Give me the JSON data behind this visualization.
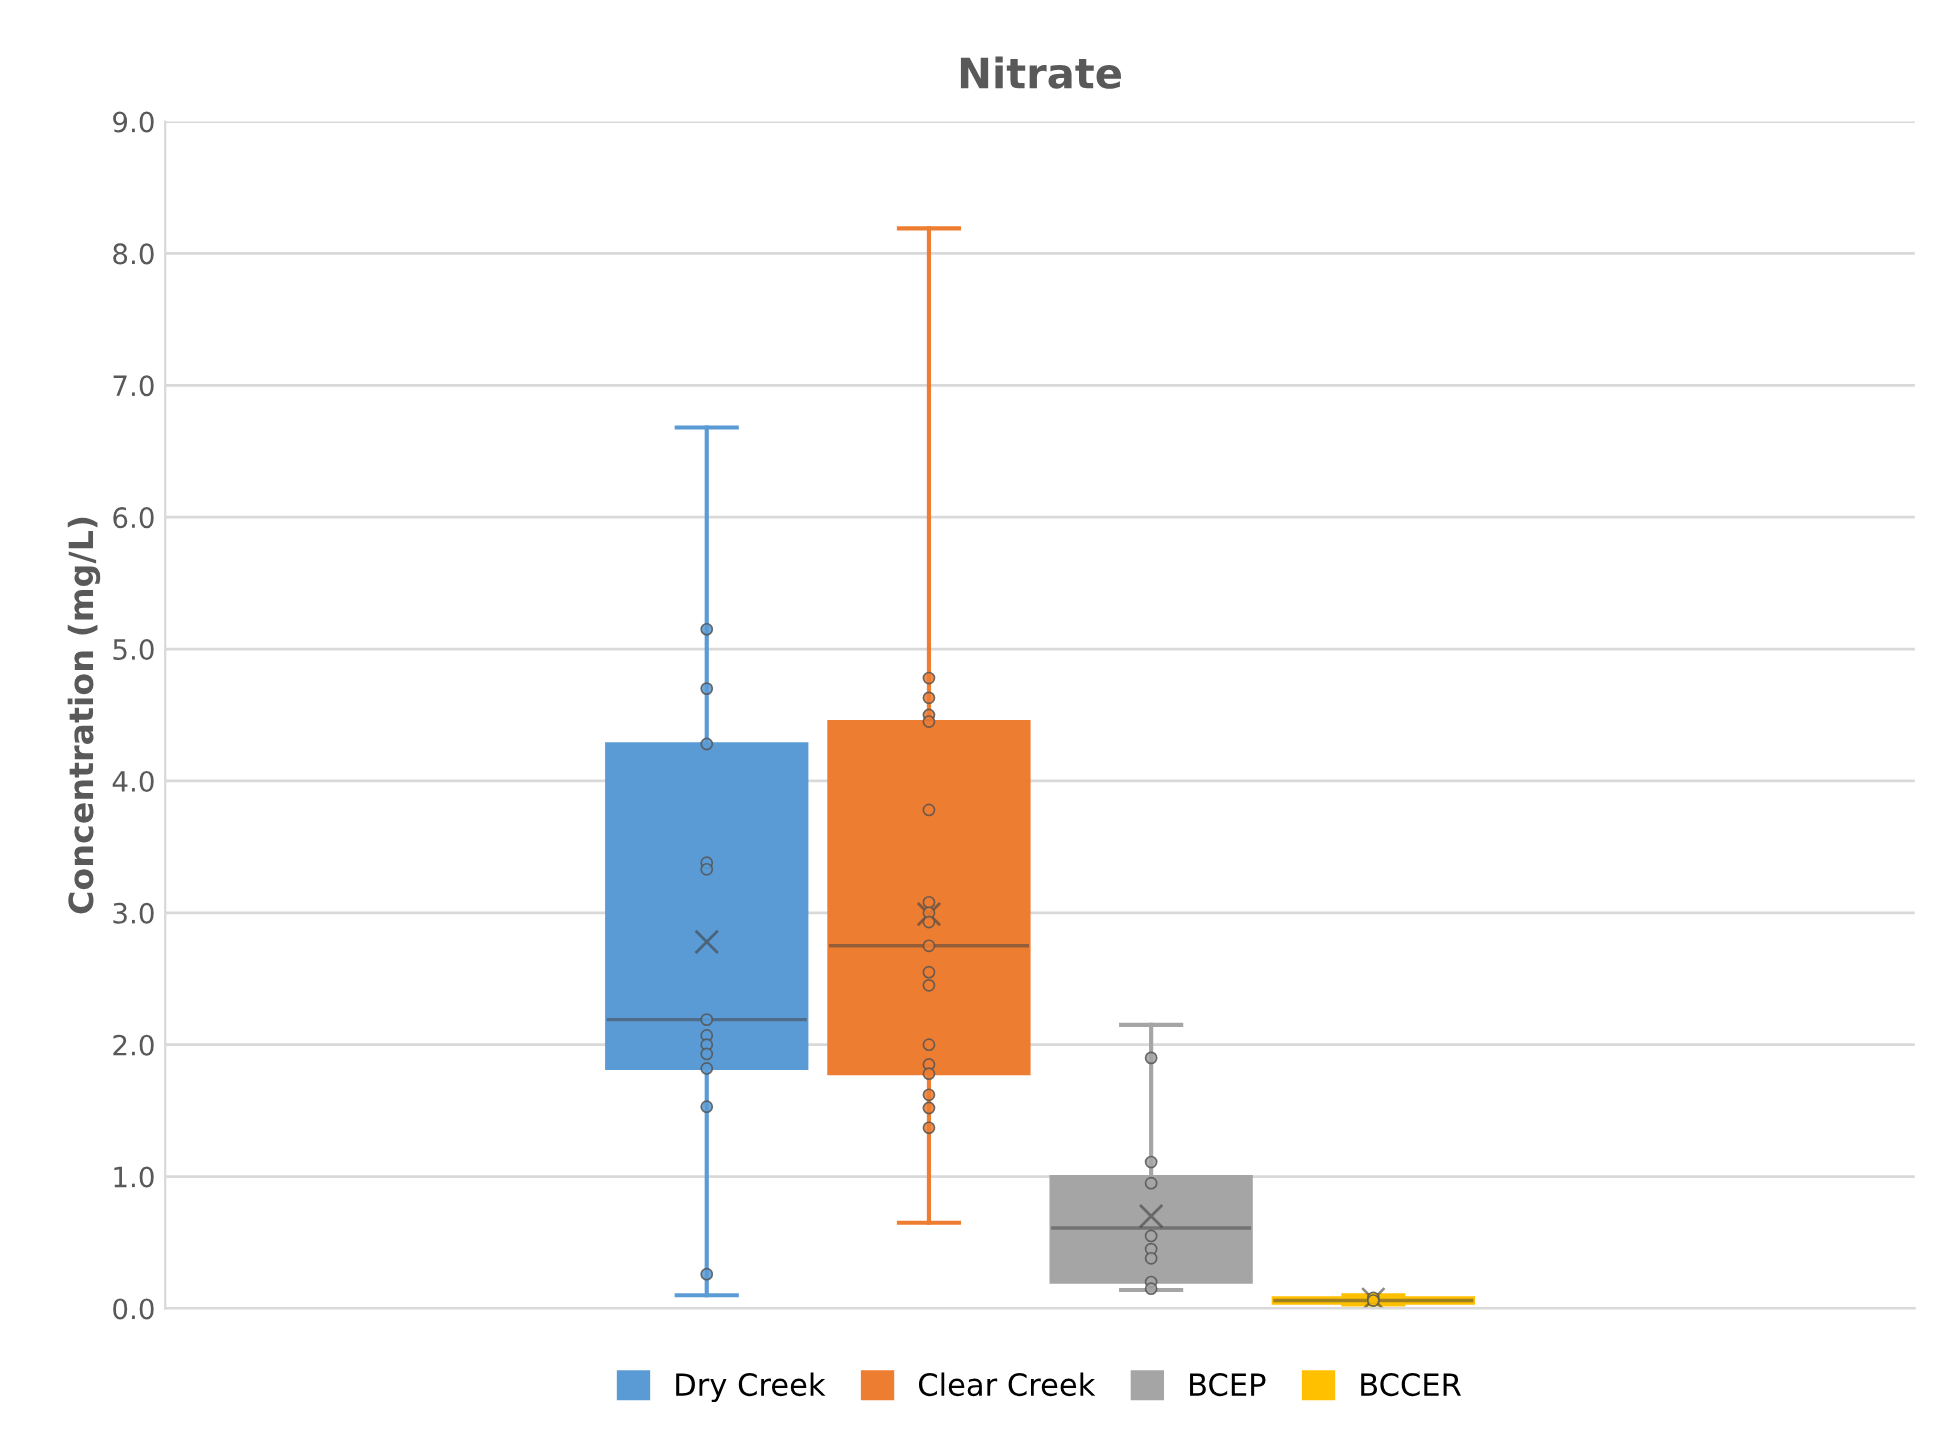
{
  "chart_data": {
    "type": "box",
    "title": "Nitrate",
    "ylabel": "Concentration (mg/L)",
    "categories": [
      null
    ],
    "ylim": [
      0,
      9
    ],
    "yticks": [
      {
        "value": 0,
        "label": "0.0"
      },
      {
        "value": 1,
        "label": "1.0"
      },
      {
        "value": 2,
        "label": "2.0"
      },
      {
        "value": 3,
        "label": "3.0"
      },
      {
        "value": 4,
        "label": "4.0"
      },
      {
        "value": 5,
        "label": "5.0"
      },
      {
        "value": 6,
        "label": "6.0"
      },
      {
        "value": 7,
        "label": "7.0"
      },
      {
        "value": 8,
        "label": "8.0"
      },
      {
        "value": 9,
        "label": "9.0"
      }
    ],
    "grid": "y",
    "legend": "bottom",
    "tick_labels": "y",
    "marker": "circle",
    "series": [
      {
        "name": "Dry Creek",
        "color": "#5b9bd5",
        "boxes": [
          {
            "low": 0.1,
            "q1": 1.82,
            "median": 2.19,
            "q3": 4.28,
            "high": 6.68,
            "mean": 2.78
          }
        ]
      },
      {
        "name": "Clear Creek",
        "color": "#ed7d31",
        "boxes": [
          {
            "low": 0.65,
            "q1": 1.78,
            "median": 2.75,
            "q3": 4.45,
            "high": 8.19,
            "mean": 2.99
          }
        ]
      },
      {
        "name": "BCEP",
        "color": "#a5a5a5",
        "boxes": [
          {
            "low": 0.14,
            "q1": 0.2,
            "median": 0.61,
            "q3": 1.0,
            "high": 2.15,
            "mean": 0.7
          }
        ]
      },
      {
        "name": "BCCER",
        "color": "#ffc000",
        "boxes": [
          {
            "low": 0.03,
            "q1": 0.04,
            "median": 0.06,
            "q3": 0.08,
            "high": 0.1,
            "mean": 0.07
          }
        ]
      },
      {
        "type": "scatter",
        "color": "#5b9bd5",
        "x": [
          null,
          null,
          null,
          null,
          null,
          null,
          null,
          null,
          null,
          null,
          null,
          null
        ],
        "values": [
          5.15,
          4.7,
          4.28,
          3.38,
          3.33,
          2.19,
          2.07,
          2.0,
          1.93,
          1.82,
          1.53,
          0.26
        ]
      },
      {
        "type": "scatter",
        "color": "#ed7d31",
        "x": [
          null,
          null,
          null,
          null,
          null,
          null,
          null,
          null,
          null,
          null,
          null,
          null,
          null,
          null,
          null,
          null,
          null
        ],
        "values": [
          4.78,
          4.63,
          4.5,
          4.45,
          3.78,
          3.08,
          3.0,
          2.93,
          2.75,
          2.55,
          2.45,
          2.0,
          1.85,
          1.78,
          1.62,
          1.52,
          1.37
        ]
      },
      {
        "type": "scatter",
        "color": "#a5a5a5",
        "x": [
          null,
          null,
          null,
          null,
          null,
          null,
          null,
          null
        ],
        "values": [
          1.9,
          1.11,
          0.95,
          0.55,
          0.45,
          0.38,
          0.2,
          0.15
        ]
      },
      {
        "type": "scatter",
        "color": "#ffc000",
        "x": [
          null,
          null
        ],
        "values": [
          0.08,
          0.06
        ]
      }
    ]
  }
}
